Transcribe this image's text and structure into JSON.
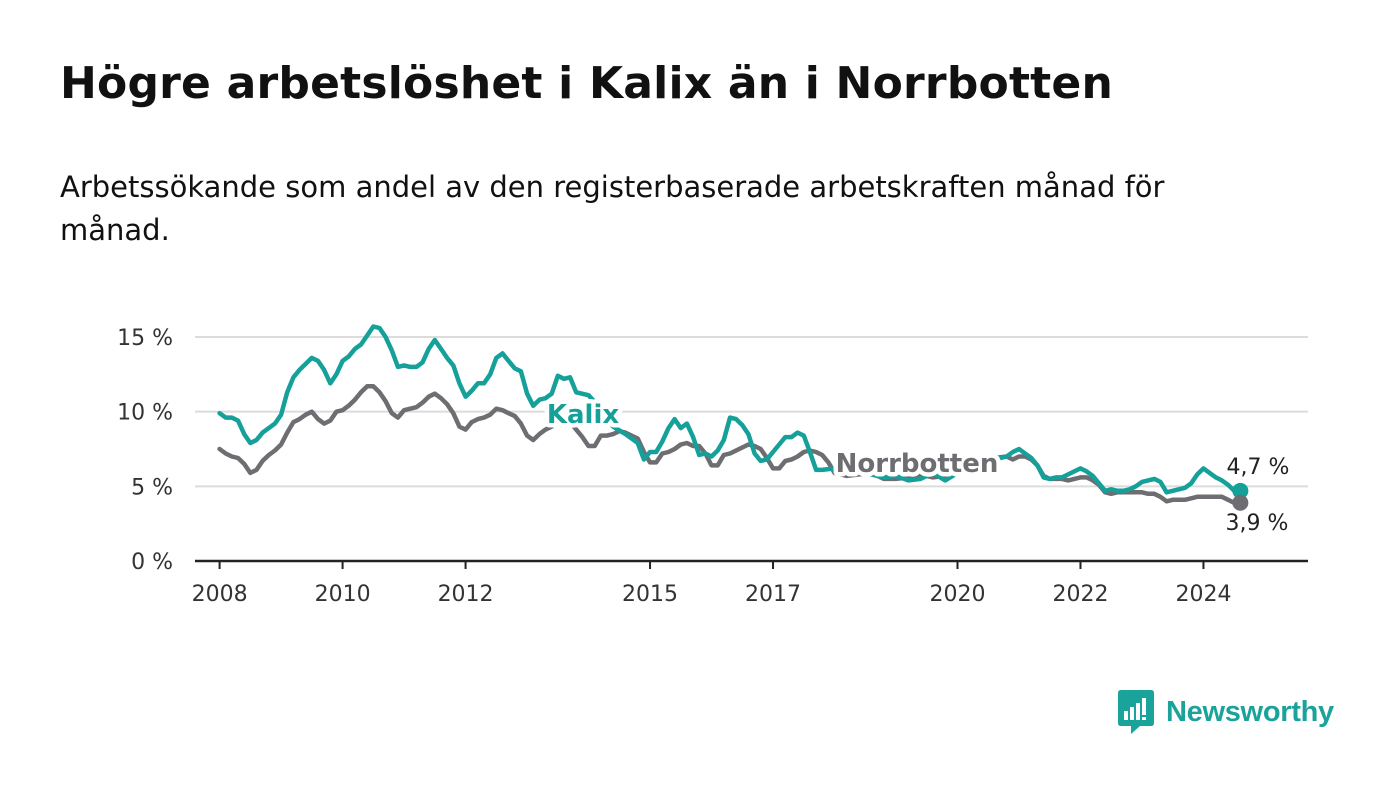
{
  "header": {
    "title": "Högre arbetslöshet i Kalix än i Norrbotten",
    "subtitle": "Arbetssökande som andel av den registerbaserade arbetskraften månad för månad."
  },
  "brand": {
    "name": "Newsworthy",
    "icon": "newsworthy-logo-icon",
    "color": "#1aa39a"
  },
  "chart_data": {
    "type": "line",
    "title": "Högre arbetslöshet i Kalix än i Norrbotten",
    "subtitle": "Arbetssökande som andel av den registerbaserade arbetskraften månad för månad.",
    "xlabel": "",
    "ylabel": "",
    "x_range": [
      2007.6,
      2025.7
    ],
    "ylim": [
      0,
      15
    ],
    "y_ticks": [
      0,
      5,
      10,
      15
    ],
    "y_tick_labels": [
      "0 %",
      "5 %",
      "10 %",
      "15 %"
    ],
    "x_ticks": [
      2008,
      2010,
      2012,
      2015,
      2017,
      2020,
      2022,
      2024
    ],
    "x_tick_labels": [
      "2008",
      "2010",
      "2012",
      "2015",
      "2017",
      "2020",
      "2022",
      "2024"
    ],
    "grid": true,
    "legend": "inline labels",
    "end_labels": [
      "4,7 %",
      "3,9 %"
    ],
    "series": [
      {
        "name": "Kalix",
        "color": "#15a09a",
        "points": [
          [
            2008.0,
            9.9
          ],
          [
            2008.1,
            9.6
          ],
          [
            2008.2,
            9.6
          ],
          [
            2008.3,
            9.4
          ],
          [
            2008.4,
            8.5
          ],
          [
            2008.5,
            7.9
          ],
          [
            2008.6,
            8.1
          ],
          [
            2008.7,
            8.6
          ],
          [
            2008.8,
            8.9
          ],
          [
            2008.9,
            9.2
          ],
          [
            2009.0,
            9.8
          ],
          [
            2009.1,
            11.3
          ],
          [
            2009.2,
            12.3
          ],
          [
            2009.3,
            12.8
          ],
          [
            2009.4,
            13.2
          ],
          [
            2009.5,
            13.6
          ],
          [
            2009.6,
            13.4
          ],
          [
            2009.7,
            12.8
          ],
          [
            2009.8,
            11.9
          ],
          [
            2009.9,
            12.5
          ],
          [
            2010.0,
            13.4
          ],
          [
            2010.1,
            13.7
          ],
          [
            2010.2,
            14.2
          ],
          [
            2010.3,
            14.5
          ],
          [
            2010.4,
            15.1
          ],
          [
            2010.5,
            15.7
          ],
          [
            2010.6,
            15.6
          ],
          [
            2010.7,
            15.0
          ],
          [
            2010.8,
            14.1
          ],
          [
            2010.9,
            13.0
          ],
          [
            2011.0,
            13.1
          ],
          [
            2011.1,
            13.0
          ],
          [
            2011.2,
            13.0
          ],
          [
            2011.3,
            13.3
          ],
          [
            2011.4,
            14.2
          ],
          [
            2011.5,
            14.8
          ],
          [
            2011.6,
            14.2
          ],
          [
            2011.7,
            13.6
          ],
          [
            2011.8,
            13.1
          ],
          [
            2011.9,
            11.9
          ],
          [
            2012.0,
            11.0
          ],
          [
            2012.1,
            11.4
          ],
          [
            2012.2,
            11.9
          ],
          [
            2012.3,
            11.9
          ],
          [
            2012.4,
            12.5
          ],
          [
            2012.5,
            13.6
          ],
          [
            2012.6,
            13.9
          ],
          [
            2012.7,
            13.4
          ],
          [
            2012.8,
            12.9
          ],
          [
            2012.9,
            12.7
          ],
          [
            2013.0,
            11.2
          ],
          [
            2013.1,
            10.4
          ],
          [
            2013.2,
            10.8
          ],
          [
            2013.3,
            10.9
          ],
          [
            2013.4,
            11.2
          ],
          [
            2013.5,
            12.4
          ],
          [
            2013.6,
            12.2
          ],
          [
            2013.7,
            12.3
          ],
          [
            2013.8,
            11.3
          ],
          [
            2014.0,
            11.1
          ],
          [
            2014.2,
            10.2
          ],
          [
            2014.4,
            9.0
          ],
          [
            2014.6,
            8.5
          ],
          [
            2014.8,
            7.9
          ],
          [
            2014.9,
            6.8
          ],
          [
            2015.0,
            7.3
          ],
          [
            2015.1,
            7.3
          ],
          [
            2015.2,
            8.0
          ],
          [
            2015.3,
            8.9
          ],
          [
            2015.4,
            9.5
          ],
          [
            2015.5,
            8.9
          ],
          [
            2015.6,
            9.2
          ],
          [
            2015.7,
            8.3
          ],
          [
            2015.8,
            7.1
          ],
          [
            2015.9,
            7.2
          ],
          [
            2016.0,
            7.0
          ],
          [
            2016.1,
            7.4
          ],
          [
            2016.2,
            8.1
          ],
          [
            2016.3,
            9.6
          ],
          [
            2016.4,
            9.5
          ],
          [
            2016.5,
            9.1
          ],
          [
            2016.6,
            8.5
          ],
          [
            2016.7,
            7.2
          ],
          [
            2016.8,
            6.7
          ],
          [
            2016.9,
            6.8
          ],
          [
            2017.0,
            7.3
          ],
          [
            2017.1,
            7.8
          ],
          [
            2017.2,
            8.3
          ],
          [
            2017.3,
            8.3
          ],
          [
            2017.4,
            8.6
          ],
          [
            2017.5,
            8.4
          ],
          [
            2017.6,
            7.3
          ],
          [
            2017.7,
            6.1
          ],
          [
            2017.8,
            6.1
          ],
          [
            2018.0,
            6.2
          ],
          [
            2018.4,
            6.0
          ],
          [
            2018.8,
            5.6
          ],
          [
            2019.0,
            5.7
          ],
          [
            2019.2,
            5.4
          ],
          [
            2019.4,
            5.5
          ],
          [
            2019.6,
            5.9
          ],
          [
            2019.8,
            5.4
          ],
          [
            2020.0,
            5.9
          ],
          [
            2020.2,
            6.2
          ],
          [
            2020.4,
            6.5
          ],
          [
            2020.6,
            6.8
          ],
          [
            2020.8,
            7.0
          ],
          [
            2020.9,
            7.3
          ],
          [
            2021.0,
            7.5
          ],
          [
            2021.1,
            7.2
          ],
          [
            2021.2,
            6.9
          ],
          [
            2021.3,
            6.4
          ],
          [
            2021.4,
            5.6
          ],
          [
            2021.5,
            5.5
          ],
          [
            2021.6,
            5.6
          ],
          [
            2021.7,
            5.6
          ],
          [
            2021.8,
            5.8
          ],
          [
            2021.9,
            6.0
          ],
          [
            2022.0,
            6.2
          ],
          [
            2022.1,
            6.0
          ],
          [
            2022.2,
            5.7
          ],
          [
            2022.3,
            5.2
          ],
          [
            2022.4,
            4.7
          ],
          [
            2022.5,
            4.8
          ],
          [
            2022.6,
            4.7
          ],
          [
            2022.7,
            4.7
          ],
          [
            2022.8,
            4.8
          ],
          [
            2022.9,
            5.0
          ],
          [
            2023.0,
            5.3
          ],
          [
            2023.1,
            5.4
          ],
          [
            2023.2,
            5.5
          ],
          [
            2023.3,
            5.3
          ],
          [
            2023.4,
            4.6
          ],
          [
            2023.5,
            4.7
          ],
          [
            2023.6,
            4.8
          ],
          [
            2023.7,
            4.9
          ],
          [
            2023.8,
            5.2
          ],
          [
            2023.9,
            5.8
          ],
          [
            2024.0,
            6.2
          ],
          [
            2024.1,
            5.9
          ],
          [
            2024.2,
            5.6
          ],
          [
            2024.3,
            5.4
          ],
          [
            2024.4,
            5.1
          ],
          [
            2024.5,
            4.7
          ],
          [
            2024.6,
            4.7
          ]
        ]
      },
      {
        "name": "Norrbotten",
        "color": "#6e6e72",
        "points": [
          [
            2008.0,
            7.5
          ],
          [
            2008.1,
            7.2
          ],
          [
            2008.2,
            7.0
          ],
          [
            2008.3,
            6.9
          ],
          [
            2008.4,
            6.5
          ],
          [
            2008.5,
            5.9
          ],
          [
            2008.6,
            6.1
          ],
          [
            2008.7,
            6.7
          ],
          [
            2008.8,
            7.1
          ],
          [
            2008.9,
            7.4
          ],
          [
            2009.0,
            7.8
          ],
          [
            2009.1,
            8.6
          ],
          [
            2009.2,
            9.3
          ],
          [
            2009.3,
            9.5
          ],
          [
            2009.4,
            9.8
          ],
          [
            2009.5,
            10.0
          ],
          [
            2009.6,
            9.5
          ],
          [
            2009.7,
            9.2
          ],
          [
            2009.8,
            9.4
          ],
          [
            2009.9,
            10.0
          ],
          [
            2010.0,
            10.1
          ],
          [
            2010.1,
            10.4
          ],
          [
            2010.2,
            10.8
          ],
          [
            2010.3,
            11.3
          ],
          [
            2010.4,
            11.7
          ],
          [
            2010.5,
            11.7
          ],
          [
            2010.6,
            11.3
          ],
          [
            2010.7,
            10.7
          ],
          [
            2010.8,
            9.9
          ],
          [
            2010.9,
            9.6
          ],
          [
            2011.0,
            10.1
          ],
          [
            2011.1,
            10.2
          ],
          [
            2011.2,
            10.3
          ],
          [
            2011.3,
            10.6
          ],
          [
            2011.4,
            11.0
          ],
          [
            2011.5,
            11.2
          ],
          [
            2011.6,
            10.9
          ],
          [
            2011.7,
            10.5
          ],
          [
            2011.8,
            9.9
          ],
          [
            2011.9,
            9.0
          ],
          [
            2012.0,
            8.8
          ],
          [
            2012.1,
            9.3
          ],
          [
            2012.2,
            9.5
          ],
          [
            2012.3,
            9.6
          ],
          [
            2012.4,
            9.8
          ],
          [
            2012.5,
            10.2
          ],
          [
            2012.6,
            10.1
          ],
          [
            2012.7,
            9.9
          ],
          [
            2012.8,
            9.7
          ],
          [
            2012.9,
            9.2
          ],
          [
            2013.0,
            8.4
          ],
          [
            2013.1,
            8.1
          ],
          [
            2013.2,
            8.5
          ],
          [
            2013.3,
            8.8
          ],
          [
            2013.4,
            9.0
          ],
          [
            2013.5,
            9.4
          ],
          [
            2013.6,
            9.5
          ],
          [
            2013.7,
            9.3
          ],
          [
            2013.8,
            8.8
          ],
          [
            2013.9,
            8.3
          ],
          [
            2014.0,
            7.7
          ],
          [
            2014.1,
            7.7
          ],
          [
            2014.2,
            8.4
          ],
          [
            2014.3,
            8.4
          ],
          [
            2014.4,
            8.5
          ],
          [
            2014.5,
            8.7
          ],
          [
            2014.6,
            8.6
          ],
          [
            2014.7,
            8.4
          ],
          [
            2014.8,
            8.2
          ],
          [
            2014.9,
            7.3
          ],
          [
            2015.0,
            6.6
          ],
          [
            2015.1,
            6.6
          ],
          [
            2015.2,
            7.2
          ],
          [
            2015.3,
            7.3
          ],
          [
            2015.4,
            7.5
          ],
          [
            2015.5,
            7.8
          ],
          [
            2015.6,
            7.9
          ],
          [
            2015.7,
            7.7
          ],
          [
            2015.8,
            7.7
          ],
          [
            2015.9,
            7.2
          ],
          [
            2016.0,
            6.4
          ],
          [
            2016.1,
            6.4
          ],
          [
            2016.2,
            7.1
          ],
          [
            2016.3,
            7.2
          ],
          [
            2016.4,
            7.4
          ],
          [
            2016.5,
            7.6
          ],
          [
            2016.6,
            7.8
          ],
          [
            2016.7,
            7.7
          ],
          [
            2016.8,
            7.5
          ],
          [
            2016.9,
            6.9
          ],
          [
            2017.0,
            6.2
          ],
          [
            2017.1,
            6.2
          ],
          [
            2017.2,
            6.7
          ],
          [
            2017.3,
            6.8
          ],
          [
            2017.4,
            7.0
          ],
          [
            2017.5,
            7.3
          ],
          [
            2017.6,
            7.4
          ],
          [
            2017.7,
            7.3
          ],
          [
            2017.8,
            7.1
          ],
          [
            2017.9,
            6.6
          ],
          [
            2018.0,
            5.9
          ],
          [
            2018.2,
            5.7
          ],
          [
            2018.4,
            5.8
          ],
          [
            2018.6,
            5.9
          ],
          [
            2018.8,
            5.5
          ],
          [
            2019.0,
            5.5
          ],
          [
            2019.2,
            5.6
          ],
          [
            2019.4,
            5.8
          ],
          [
            2019.6,
            5.6
          ],
          [
            2019.8,
            5.7
          ],
          [
            2020.0,
            6.0
          ],
          [
            2020.2,
            6.3
          ],
          [
            2020.4,
            6.6
          ],
          [
            2020.6,
            6.9
          ],
          [
            2020.8,
            7.0
          ],
          [
            2020.9,
            6.8
          ],
          [
            2021.0,
            7.0
          ],
          [
            2021.1,
            7.0
          ],
          [
            2021.2,
            6.8
          ],
          [
            2021.3,
            6.4
          ],
          [
            2021.4,
            5.7
          ],
          [
            2021.5,
            5.5
          ],
          [
            2021.6,
            5.5
          ],
          [
            2021.7,
            5.5
          ],
          [
            2021.8,
            5.4
          ],
          [
            2021.9,
            5.5
          ],
          [
            2022.0,
            5.6
          ],
          [
            2022.1,
            5.6
          ],
          [
            2022.2,
            5.4
          ],
          [
            2022.3,
            5.1
          ],
          [
            2022.4,
            4.6
          ],
          [
            2022.5,
            4.5
          ],
          [
            2022.6,
            4.6
          ],
          [
            2022.7,
            4.6
          ],
          [
            2022.8,
            4.6
          ],
          [
            2022.9,
            4.6
          ],
          [
            2023.0,
            4.6
          ],
          [
            2023.1,
            4.5
          ],
          [
            2023.2,
            4.5
          ],
          [
            2023.3,
            4.3
          ],
          [
            2023.4,
            4.0
          ],
          [
            2023.5,
            4.1
          ],
          [
            2023.6,
            4.1
          ],
          [
            2023.7,
            4.1
          ],
          [
            2023.8,
            4.2
          ],
          [
            2023.9,
            4.3
          ],
          [
            2024.0,
            4.3
          ],
          [
            2024.1,
            4.3
          ],
          [
            2024.2,
            4.3
          ],
          [
            2024.3,
            4.3
          ],
          [
            2024.4,
            4.1
          ],
          [
            2024.5,
            3.9
          ],
          [
            2024.6,
            3.9
          ]
        ]
      }
    ]
  }
}
